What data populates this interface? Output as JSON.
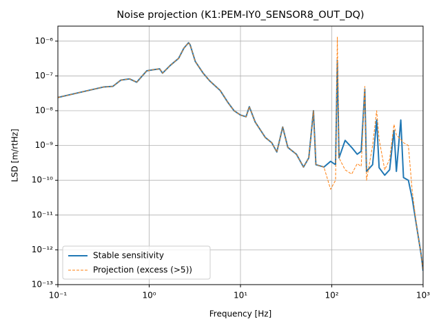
{
  "chart_data": {
    "type": "line",
    "title": "Noise projection (K1:PEM-IY0_SENSOR8_OUT_DQ)",
    "x_label": "Frequency [Hz]",
    "y_label": "LSD [m/rtHz]",
    "x": [
      0.1,
      0.316,
      0.4,
      0.49,
      0.61,
      0.73,
      0.94,
      1.1,
      1.3,
      1.4,
      1.7,
      2.1,
      2.4,
      2.7,
      2.8,
      3.2,
      3.9,
      4.6,
      6,
      7.2,
      8.5,
      10,
      11.5,
      12.5,
      14.5,
      18.7,
      22,
      25,
      29,
      33,
      41,
      49,
      56,
      63,
      67,
      82,
      97,
      110,
      115,
      120,
      140,
      165,
      190,
      210,
      230,
      240,
      280,
      310,
      330,
      380,
      430,
      480,
      510,
      570,
      610,
      690,
      760,
      850,
      950,
      1000
    ],
    "series": [
      {
        "name": "Stable sensitivity",
        "color": "#1f77b4",
        "dashed": false,
        "values": [
          2.4e-08,
          4.8e-08,
          5e-08,
          7.6e-08,
          8.2e-08,
          6.6e-08,
          1.4e-07,
          1.5e-07,
          1.6e-07,
          1.2e-07,
          2e-07,
          3.2e-07,
          6.3e-07,
          9e-07,
          8e-07,
          2.6e-07,
          1.2e-07,
          7.2e-08,
          3.8e-08,
          1.8e-08,
          1e-08,
          7.5e-09,
          6.7e-09,
          1.3e-08,
          4.7e-09,
          1.7e-09,
          1.2e-09,
          6.5e-10,
          3.4e-09,
          8.8e-10,
          5.6e-10,
          2.4e-10,
          4.4e-10,
          1e-08,
          2.8e-10,
          2.4e-10,
          3.5e-10,
          2.8e-10,
          2.8e-07,
          4.4e-10,
          1.4e-09,
          8.8e-10,
          5.6e-10,
          6.8e-10,
          4.2e-08,
          1.8e-10,
          2.8e-10,
          5.4e-09,
          2.3e-10,
          1.4e-10,
          2e-10,
          2.7e-09,
          1.8e-10,
          5.4e-09,
          1.2e-10,
          1e-10,
          3e-11,
          4.7e-12,
          7.6e-13,
          2.5e-13
        ]
      },
      {
        "name": "Projection (excess (>5))",
        "color": "#ff7f0e",
        "dashed": true,
        "values": [
          2.4e-08,
          4.8e-08,
          5e-08,
          7.6e-08,
          8.2e-08,
          6.6e-08,
          1.4e-07,
          1.5e-07,
          1.6e-07,
          1.2e-07,
          2e-07,
          3.2e-07,
          6.3e-07,
          9e-07,
          8e-07,
          2.6e-07,
          1.2e-07,
          7.2e-08,
          3.8e-08,
          1.8e-08,
          1e-08,
          7.5e-09,
          6.7e-09,
          1.3e-08,
          4.7e-09,
          1.7e-09,
          1.2e-09,
          6.5e-10,
          3.4e-09,
          8.8e-10,
          5.6e-10,
          2.4e-10,
          4.4e-10,
          1e-08,
          2.8e-10,
          2.4e-10,
          5.5e-11,
          1e-10,
          1.3e-06,
          4.4e-10,
          2e-10,
          1.5e-10,
          3e-10,
          2.5e-10,
          5e-08,
          1e-10,
          1e-09,
          1e-08,
          1.5e-09,
          2e-10,
          4e-10,
          4e-09,
          2e-09,
          1.5e-09,
          1.2e-09,
          1e-09,
          5e-11,
          4.7e-12,
          7.6e-13,
          2.5e-13
        ]
      }
    ],
    "xlog": true,
    "ylog": true,
    "xlim": [
      0.1,
      1000
    ],
    "xticks": [
      {
        "value": 0.1,
        "label": "10⁻¹"
      },
      {
        "value": 1,
        "label": "10⁰"
      },
      {
        "value": 10,
        "label": "10¹"
      },
      {
        "value": 100,
        "label": "10²"
      },
      {
        "value": 1000,
        "label": "10³"
      }
    ],
    "ylim": [
      1e-13,
      2.7e-06
    ],
    "yticks": [
      {
        "value": 1e-13,
        "label": "10⁻¹³"
      },
      {
        "value": 1e-12,
        "label": "10⁻¹²"
      },
      {
        "value": 1e-11,
        "label": "10⁻¹¹"
      },
      {
        "value": 1e-10,
        "label": "10⁻¹⁰"
      },
      {
        "value": 1e-09,
        "label": "10⁻⁹"
      },
      {
        "value": 1e-08,
        "label": "10⁻⁸"
      },
      {
        "value": 1e-07,
        "label": "10⁻⁷"
      },
      {
        "value": 1e-06,
        "label": "10⁻⁶"
      }
    ],
    "grid": true,
    "legend": "lower left"
  }
}
